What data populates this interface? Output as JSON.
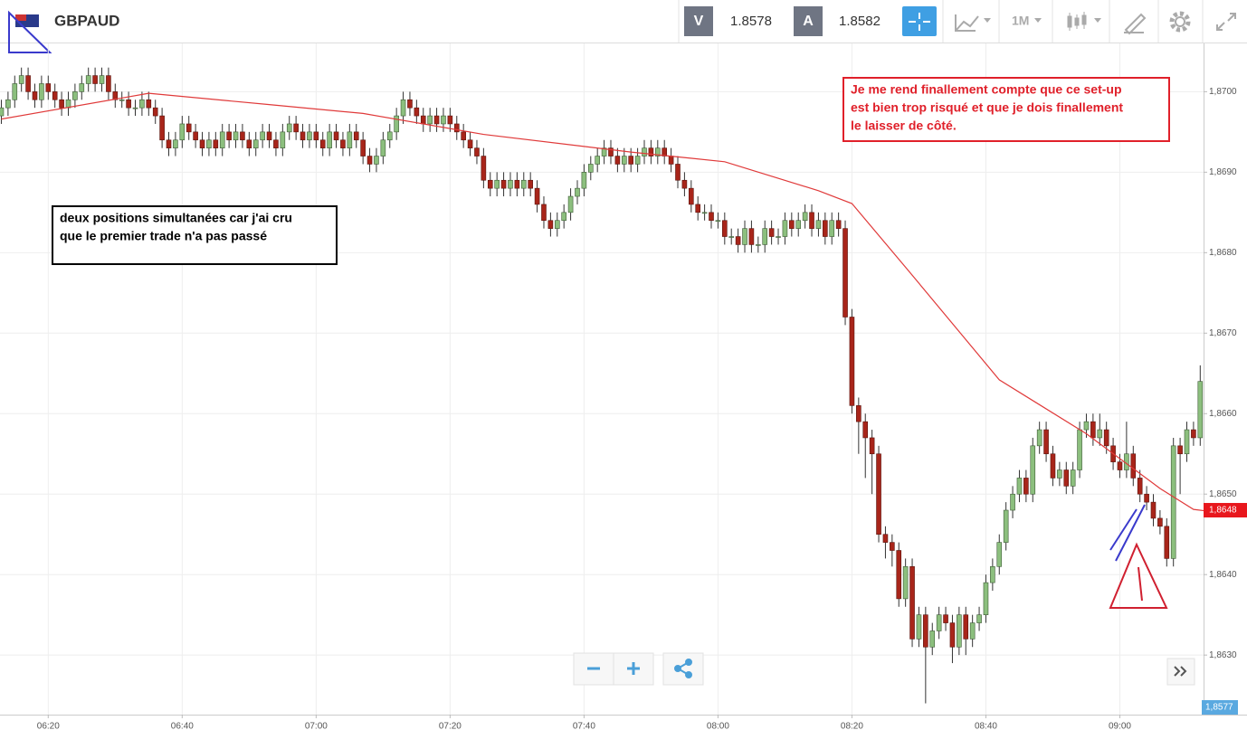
{
  "toolbar": {
    "symbol": "GBPAUD",
    "sell_label": "V",
    "sell": 1.8578,
    "buy_label": "A",
    "buy": 1.8582,
    "interval": "1M"
  },
  "chart_data": {
    "type": "candlestick",
    "x": [
      373,
      374,
      375,
      376,
      377,
      378,
      379,
      380,
      381,
      382,
      383,
      384,
      385,
      386,
      387,
      388,
      389,
      390,
      391,
      392,
      393,
      394,
      395,
      396,
      397,
      398,
      399,
      400,
      401,
      402,
      403,
      404,
      405,
      406,
      407,
      408,
      409,
      410,
      411,
      412,
      413,
      414,
      415,
      416,
      417,
      418,
      419,
      420,
      421,
      422,
      423,
      424,
      425,
      426,
      427,
      428,
      429,
      430,
      431,
      432,
      433,
      434,
      435,
      436,
      437,
      438,
      439,
      440,
      441,
      442,
      443,
      444,
      445,
      446,
      447,
      448,
      449,
      450,
      451,
      452,
      453,
      454,
      455,
      456,
      457,
      458,
      459,
      460,
      461,
      462,
      463,
      464,
      465,
      466,
      467,
      468,
      469,
      470,
      471,
      472,
      473,
      474,
      475,
      476,
      477,
      478,
      479,
      480,
      481,
      482,
      483,
      484,
      485,
      486,
      487,
      488,
      489,
      490,
      491,
      492,
      493,
      494,
      495,
      496,
      497,
      498,
      499,
      500,
      501,
      502,
      503,
      504,
      505,
      506,
      507,
      508,
      509,
      510,
      511,
      512,
      513,
      514,
      515,
      516,
      517,
      518,
      519,
      520,
      521,
      522,
      523,
      524,
      525,
      526,
      527,
      528,
      529,
      530,
      531,
      532,
      533,
      534,
      535,
      536,
      537,
      538,
      539,
      540,
      541,
      542,
      543,
      544,
      545,
      546,
      547,
      548,
      549,
      550,
      551,
      552
    ],
    "candles": [
      [
        1.8697,
        1.8699,
        1.8696,
        1.8698
      ],
      [
        1.8698,
        1.87,
        1.8697,
        1.8699
      ],
      [
        1.8699,
        1.8702,
        1.8698,
        1.8701
      ],
      [
        1.8701,
        1.8703,
        1.87,
        1.8702
      ],
      [
        1.8702,
        1.8703,
        1.8699,
        1.87
      ],
      [
        1.87,
        1.8701,
        1.8698,
        1.8699
      ],
      [
        1.8699,
        1.8702,
        1.8698,
        1.8701
      ],
      [
        1.8701,
        1.8702,
        1.8699,
        1.87
      ],
      [
        1.87,
        1.8701,
        1.8698,
        1.8699
      ],
      [
        1.8699,
        1.87,
        1.8697,
        1.8698
      ],
      [
        1.8698,
        1.87,
        1.8697,
        1.8699
      ],
      [
        1.8699,
        1.8701,
        1.8698,
        1.87
      ],
      [
        1.87,
        1.8702,
        1.8699,
        1.8701
      ],
      [
        1.8701,
        1.8703,
        1.87,
        1.8702
      ],
      [
        1.8702,
        1.8703,
        1.87,
        1.8701
      ],
      [
        1.8701,
        1.8703,
        1.87,
        1.8702
      ],
      [
        1.8702,
        1.8703,
        1.8699,
        1.87
      ],
      [
        1.87,
        1.8701,
        1.8698,
        1.8699
      ],
      [
        1.8699,
        1.87,
        1.8698,
        1.8699
      ],
      [
        1.8699,
        1.87,
        1.8697,
        1.8698
      ],
      [
        1.8698,
        1.8699,
        1.8697,
        1.8698
      ],
      [
        1.8698,
        1.87,
        1.8697,
        1.8699
      ],
      [
        1.8699,
        1.87,
        1.8697,
        1.8698
      ],
      [
        1.8698,
        1.8699,
        1.8696,
        1.8697
      ],
      [
        1.8697,
        1.8698,
        1.8693,
        1.8694
      ],
      [
        1.8694,
        1.8695,
        1.8692,
        1.8693
      ],
      [
        1.8693,
        1.8695,
        1.8692,
        1.8694
      ],
      [
        1.8694,
        1.8697,
        1.8693,
        1.8696
      ],
      [
        1.8696,
        1.8697,
        1.8694,
        1.8695
      ],
      [
        1.8695,
        1.8696,
        1.8693,
        1.8694
      ],
      [
        1.8694,
        1.8695,
        1.8692,
        1.8693
      ],
      [
        1.8693,
        1.8695,
        1.8692,
        1.8694
      ],
      [
        1.8694,
        1.8695,
        1.8692,
        1.8693
      ],
      [
        1.8693,
        1.8696,
        1.8692,
        1.8695
      ],
      [
        1.8695,
        1.8696,
        1.8693,
        1.8694
      ],
      [
        1.8694,
        1.8696,
        1.8693,
        1.8695
      ],
      [
        1.8695,
        1.8696,
        1.8693,
        1.8694
      ],
      [
        1.8694,
        1.8695,
        1.8692,
        1.8693
      ],
      [
        1.8693,
        1.8695,
        1.8692,
        1.8694
      ],
      [
        1.8694,
        1.8696,
        1.8693,
        1.8695
      ],
      [
        1.8695,
        1.8696,
        1.8693,
        1.8694
      ],
      [
        1.8694,
        1.8695,
        1.8692,
        1.8693
      ],
      [
        1.8693,
        1.8696,
        1.8692,
        1.8695
      ],
      [
        1.8695,
        1.8697,
        1.8694,
        1.8696
      ],
      [
        1.8696,
        1.8697,
        1.8694,
        1.8695
      ],
      [
        1.8695,
        1.8696,
        1.8693,
        1.8694
      ],
      [
        1.8694,
        1.8696,
        1.8693,
        1.8695
      ],
      [
        1.8695,
        1.8696,
        1.8693,
        1.8694
      ],
      [
        1.8694,
        1.8695,
        1.8692,
        1.8693
      ],
      [
        1.8693,
        1.8696,
        1.8692,
        1.8695
      ],
      [
        1.8695,
        1.8696,
        1.8693,
        1.8694
      ],
      [
        1.8694,
        1.8695,
        1.8692,
        1.8693
      ],
      [
        1.8693,
        1.8696,
        1.8692,
        1.8695
      ],
      [
        1.8695,
        1.8696,
        1.8693,
        1.8694
      ],
      [
        1.8694,
        1.8695,
        1.8691,
        1.8692
      ],
      [
        1.8692,
        1.8693,
        1.869,
        1.8691
      ],
      [
        1.8691,
        1.8693,
        1.869,
        1.8692
      ],
      [
        1.8692,
        1.8695,
        1.8691,
        1.8694
      ],
      [
        1.8694,
        1.8696,
        1.8693,
        1.8695
      ],
      [
        1.8695,
        1.8698,
        1.8694,
        1.8697
      ],
      [
        1.8697,
        1.87,
        1.8696,
        1.8699
      ],
      [
        1.8699,
        1.87,
        1.8697,
        1.8698
      ],
      [
        1.8698,
        1.8699,
        1.8696,
        1.8697
      ],
      [
        1.8697,
        1.8698,
        1.8695,
        1.8696
      ],
      [
        1.8696,
        1.8698,
        1.8695,
        1.8697
      ],
      [
        1.8697,
        1.8698,
        1.8695,
        1.8696
      ],
      [
        1.8696,
        1.8698,
        1.8695,
        1.8697
      ],
      [
        1.8697,
        1.8698,
        1.8695,
        1.8696
      ],
      [
        1.8696,
        1.8697,
        1.8694,
        1.8695
      ],
      [
        1.8695,
        1.8696,
        1.8693,
        1.8694
      ],
      [
        1.8694,
        1.8695,
        1.8692,
        1.8693
      ],
      [
        1.8693,
        1.8694,
        1.8691,
        1.8692
      ],
      [
        1.8692,
        1.8693,
        1.8688,
        1.8689
      ],
      [
        1.8689,
        1.869,
        1.8687,
        1.8688
      ],
      [
        1.8688,
        1.869,
        1.8687,
        1.8689
      ],
      [
        1.8689,
        1.869,
        1.8687,
        1.8688
      ],
      [
        1.8688,
        1.869,
        1.8687,
        1.8689
      ],
      [
        1.8689,
        1.869,
        1.8687,
        1.8688
      ],
      [
        1.8688,
        1.869,
        1.8687,
        1.8689
      ],
      [
        1.8689,
        1.869,
        1.8687,
        1.8688
      ],
      [
        1.8688,
        1.8689,
        1.8685,
        1.8686
      ],
      [
        1.8686,
        1.8687,
        1.8683,
        1.8684
      ],
      [
        1.8684,
        1.8685,
        1.8682,
        1.8683
      ],
      [
        1.8683,
        1.8685,
        1.8682,
        1.8684
      ],
      [
        1.8684,
        1.8686,
        1.8683,
        1.8685
      ],
      [
        1.8685,
        1.8688,
        1.8684,
        1.8687
      ],
      [
        1.8687,
        1.8689,
        1.8686,
        1.8688
      ],
      [
        1.8688,
        1.8691,
        1.8687,
        1.869
      ],
      [
        1.869,
        1.8692,
        1.8689,
        1.8691
      ],
      [
        1.8691,
        1.8693,
        1.869,
        1.8692
      ],
      [
        1.8692,
        1.8694,
        1.8691,
        1.8693
      ],
      [
        1.8693,
        1.8694,
        1.8691,
        1.8692
      ],
      [
        1.8692,
        1.8693,
        1.869,
        1.8691
      ],
      [
        1.8691,
        1.8693,
        1.869,
        1.8692
      ],
      [
        1.8692,
        1.8693,
        1.869,
        1.8691
      ],
      [
        1.8691,
        1.8693,
        1.869,
        1.8692
      ],
      [
        1.8692,
        1.8694,
        1.8691,
        1.8693
      ],
      [
        1.8693,
        1.8694,
        1.8691,
        1.8692
      ],
      [
        1.8692,
        1.8694,
        1.8691,
        1.8693
      ],
      [
        1.8693,
        1.8694,
        1.8691,
        1.8692
      ],
      [
        1.8692,
        1.8693,
        1.869,
        1.8691
      ],
      [
        1.8691,
        1.8692,
        1.8688,
        1.8689
      ],
      [
        1.8689,
        1.869,
        1.8687,
        1.8688
      ],
      [
        1.8688,
        1.8689,
        1.8685,
        1.8686
      ],
      [
        1.8686,
        1.8687,
        1.8684,
        1.8685
      ],
      [
        1.8685,
        1.8686,
        1.8684,
        1.8685
      ],
      [
        1.8685,
        1.8686,
        1.8683,
        1.8684
      ],
      [
        1.8684,
        1.8685,
        1.8683,
        1.8684
      ],
      [
        1.8684,
        1.8685,
        1.8681,
        1.8682
      ],
      [
        1.8682,
        1.8683,
        1.8681,
        1.8682
      ],
      [
        1.8682,
        1.8683,
        1.868,
        1.8681
      ],
      [
        1.8681,
        1.8684,
        1.868,
        1.8683
      ],
      [
        1.8683,
        1.8684,
        1.868,
        1.8681
      ],
      [
        1.8681,
        1.8682,
        1.868,
        1.8681
      ],
      [
        1.8681,
        1.8684,
        1.868,
        1.8683
      ],
      [
        1.8683,
        1.8684,
        1.8681,
        1.8682
      ],
      [
        1.8682,
        1.8683,
        1.8681,
        1.8682
      ],
      [
        1.8682,
        1.8685,
        1.8681,
        1.8684
      ],
      [
        1.8684,
        1.8685,
        1.8682,
        1.8683
      ],
      [
        1.8683,
        1.8685,
        1.8682,
        1.8684
      ],
      [
        1.8684,
        1.8686,
        1.8683,
        1.8685
      ],
      [
        1.8685,
        1.8686,
        1.8682,
        1.8683
      ],
      [
        1.8683,
        1.8685,
        1.8682,
        1.8684
      ],
      [
        1.8684,
        1.8685,
        1.8681,
        1.8682
      ],
      [
        1.8682,
        1.8685,
        1.8681,
        1.8684
      ],
      [
        1.8684,
        1.8685,
        1.8682,
        1.8683
      ],
      [
        1.8683,
        1.8684,
        1.8671,
        1.8672
      ],
      [
        1.8672,
        1.8673,
        1.866,
        1.8661
      ],
      [
        1.8661,
        1.8662,
        1.8655,
        1.8659
      ],
      [
        1.8659,
        1.866,
        1.8652,
        1.8657
      ],
      [
        1.8657,
        1.8658,
        1.865,
        1.8655
      ],
      [
        1.8655,
        1.8656,
        1.8644,
        1.8645
      ],
      [
        1.8645,
        1.8646,
        1.8642,
        1.8644
      ],
      [
        1.8644,
        1.8645,
        1.8641,
        1.8643
      ],
      [
        1.8643,
        1.8644,
        1.8636,
        1.8637
      ],
      [
        1.8637,
        1.8642,
        1.8636,
        1.8641
      ],
      [
        1.8641,
        1.8642,
        1.8631,
        1.8632
      ],
      [
        1.8632,
        1.8636,
        1.8631,
        1.8635
      ],
      [
        1.8635,
        1.8636,
        1.8624,
        1.8631
      ],
      [
        1.8631,
        1.8634,
        1.863,
        1.8633
      ],
      [
        1.8633,
        1.8636,
        1.8632,
        1.8635
      ],
      [
        1.8635,
        1.8636,
        1.8633,
        1.8634
      ],
      [
        1.8634,
        1.8635,
        1.8629,
        1.8631
      ],
      [
        1.8631,
        1.8636,
        1.863,
        1.8635
      ],
      [
        1.8635,
        1.8636,
        1.863,
        1.8632
      ],
      [
        1.8632,
        1.8635,
        1.8631,
        1.8634
      ],
      [
        1.8634,
        1.8636,
        1.8633,
        1.8635
      ],
      [
        1.8635,
        1.864,
        1.8634,
        1.8639
      ],
      [
        1.8639,
        1.8642,
        1.8638,
        1.8641
      ],
      [
        1.8641,
        1.8645,
        1.864,
        1.8644
      ],
      [
        1.8644,
        1.8649,
        1.8643,
        1.8648
      ],
      [
        1.8648,
        1.8651,
        1.8647,
        1.865
      ],
      [
        1.865,
        1.8653,
        1.8649,
        1.8652
      ],
      [
        1.8652,
        1.8653,
        1.8649,
        1.865
      ],
      [
        1.865,
        1.8657,
        1.8649,
        1.8656
      ],
      [
        1.8656,
        1.8659,
        1.8655,
        1.8658
      ],
      [
        1.8658,
        1.8659,
        1.8654,
        1.8655
      ],
      [
        1.8655,
        1.8656,
        1.8651,
        1.8652
      ],
      [
        1.8652,
        1.8654,
        1.8651,
        1.8653
      ],
      [
        1.8653,
        1.8654,
        1.865,
        1.8651
      ],
      [
        1.8651,
        1.8654,
        1.865,
        1.8653
      ],
      [
        1.8653,
        1.8659,
        1.8652,
        1.8658
      ],
      [
        1.8658,
        1.866,
        1.8657,
        1.8659
      ],
      [
        1.8659,
        1.866,
        1.8656,
        1.8657
      ],
      [
        1.8657,
        1.866,
        1.8656,
        1.8658
      ],
      [
        1.8658,
        1.8659,
        1.8655,
        1.8656
      ],
      [
        1.8656,
        1.8657,
        1.8653,
        1.8654
      ],
      [
        1.8654,
        1.8655,
        1.8652,
        1.8653
      ],
      [
        1.8653,
        1.8659,
        1.8652,
        1.8655
      ],
      [
        1.8655,
        1.8656,
        1.8651,
        1.8652
      ],
      [
        1.8652,
        1.8653,
        1.8649,
        1.865
      ],
      [
        1.865,
        1.8651,
        1.8648,
        1.8649
      ],
      [
        1.8649,
        1.865,
        1.8646,
        1.8647
      ],
      [
        1.8647,
        1.8648,
        1.8645,
        1.8646
      ],
      [
        1.8646,
        1.8647,
        1.8641,
        1.8642
      ],
      [
        1.8642,
        1.8657,
        1.8641,
        1.8656
      ],
      [
        1.8656,
        1.8657,
        1.865,
        1.8655
      ],
      [
        1.8655,
        1.8659,
        1.8654,
        1.8658
      ],
      [
        1.8658,
        1.8659,
        1.8656,
        1.8657
      ],
      [
        1.8657,
        1.8666,
        1.8656,
        1.8664
      ]
    ],
    "bull_color": "#8cbf7e",
    "bear_color": "#a8251a",
    "ma": {
      "color": "#e03a3a",
      "x": [
        373,
        395,
        413,
        427,
        445,
        467,
        481,
        495,
        500,
        508,
        522,
        535,
        546,
        551,
        553
      ],
      "values": [
        1.86966,
        1.86998,
        1.86984,
        1.86973,
        1.86947,
        1.86925,
        1.86913,
        1.86877,
        1.86861,
        1.86782,
        1.86642,
        1.86575,
        1.86507,
        1.86481,
        1.86479
      ]
    },
    "xlim": [
      372.8,
      552.5
    ],
    "xticks": [
      {
        "value": 380,
        "label": "06:20"
      },
      {
        "value": 400,
        "label": "06:40"
      },
      {
        "value": 420,
        "label": "07:00"
      },
      {
        "value": 440,
        "label": "07:20"
      },
      {
        "value": 460,
        "label": "07:40"
      },
      {
        "value": 480,
        "label": "08:00"
      },
      {
        "value": 500,
        "label": "08:20"
      },
      {
        "value": 520,
        "label": "08:40"
      },
      {
        "value": 540,
        "label": "09:00"
      }
    ],
    "ylim": [
      1.86226,
      1.8706
    ],
    "yticks": [
      {
        "value": 1.863,
        "label": "1,8630"
      },
      {
        "value": 1.864,
        "label": "1,8640"
      },
      {
        "value": 1.865,
        "label": "1,8650"
      },
      {
        "value": 1.866,
        "label": "1,8660"
      },
      {
        "value": 1.867,
        "label": "1,8670"
      },
      {
        "value": 1.868,
        "label": "1,8680"
      },
      {
        "value": 1.869,
        "label": "1,8690"
      },
      {
        "value": 1.87,
        "label": "1,8700"
      }
    ],
    "grid": true,
    "last_price": {
      "value": 1.8648,
      "label": "1,8648"
    },
    "cursor_price": {
      "value": 1.8577,
      "label": "1,8577"
    },
    "annotations": [
      {
        "lines": [
          "deux positions simultanées car j'ai cru",
          "que le premier trade n'a pas passé"
        ],
        "color": "#000000"
      },
      {
        "lines": [
          "Je me rend finallement compte que ce set-up",
          "est bien trop risqué et que je dois finallement",
          "le laisser de côté."
        ],
        "color": "#e0202a"
      }
    ]
  }
}
